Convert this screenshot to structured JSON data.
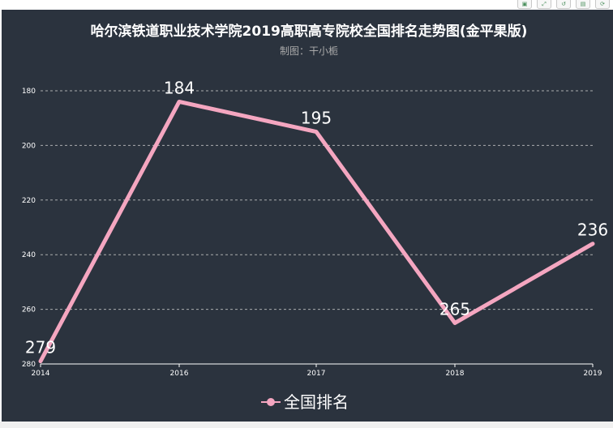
{
  "toolbar": {
    "icons": [
      "save-icon",
      "zoom-icon",
      "restore-icon",
      "data-view-icon",
      "refresh-icon"
    ]
  },
  "chart_data": {
    "type": "line",
    "title": "哈尔滨铁道职业技术学院2019高职高专院校全国排名走势图(金平果版)",
    "subtitle": "制图：干小栀",
    "categories": [
      "2014",
      "2016",
      "2017",
      "2018",
      "2019"
    ],
    "series": [
      {
        "name": "全国排名",
        "values": [
          279,
          184,
          195,
          265,
          236
        ],
        "color": "#f4a6c0"
      }
    ],
    "ylim": [
      180,
      280
    ],
    "yticks": [
      180,
      200,
      220,
      240,
      260,
      280
    ],
    "y_inverted": true,
    "grid": "horizontal-dashed",
    "legend_position": "bottom-center",
    "background": "#2b333e"
  }
}
